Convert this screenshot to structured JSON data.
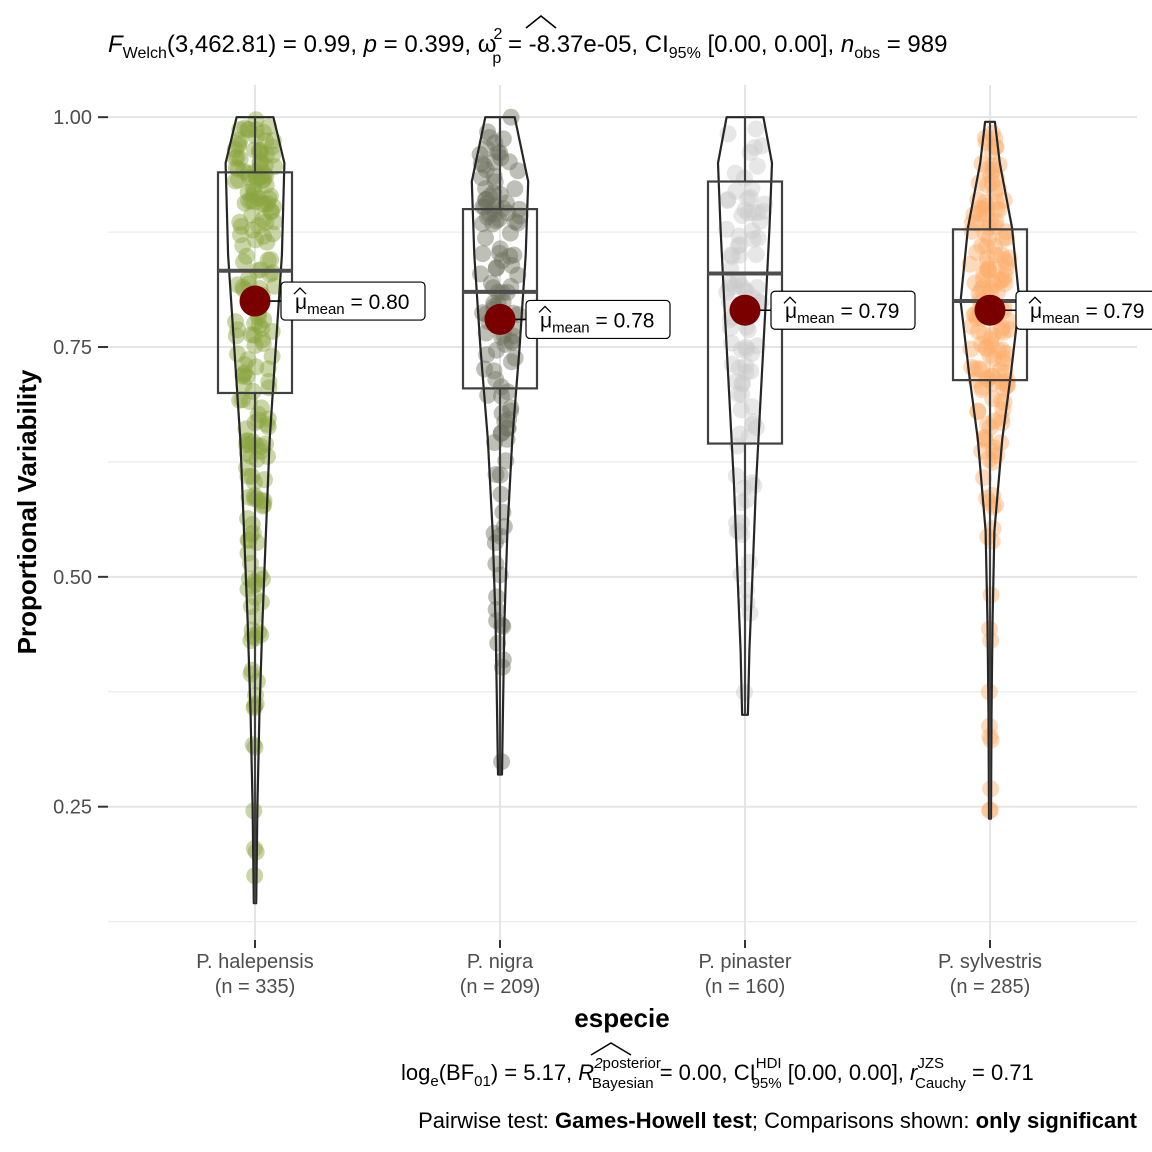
{
  "subtitle": {
    "F": "F",
    "F_sub": "Welch",
    "F_val": "(3,462.81) = 0.99, ",
    "p": "p",
    "p_val": " = 0.399, ",
    "omega": "ω",
    "omega_sup": "2",
    "omega_sub": "p",
    "omega_val": " = -8.37e-05, CI",
    "ci_sub": "95%",
    "ci_val": " [0.00, 0.00], ",
    "n": "n",
    "n_sub": "obs",
    "n_val": " = 989"
  },
  "caption": {
    "line1": {
      "log": "log",
      "log_sub": "e",
      "bf": "(BF",
      "bf_sub": "01",
      "bf_val": ") = 5.17, ",
      "r2": "R",
      "r2_sup": "2",
      "post_sup": "posterior",
      "post_sub": "Bayesian",
      "r2_val": " = 0.00, CI",
      "hdi_sup": "HDI",
      "hdi_sub": "95%",
      "ci_val": " [0.00, 0.00], ",
      "r": "r",
      "jzs_sup": "JZS",
      "cauchy_sub": "Cauchy",
      "r_val": " = 0.71"
    },
    "line2": {
      "pre": "Pairwise test: ",
      "test": "Games-Howell test",
      "mid": "; Comparisons shown: ",
      "shown": "only significant"
    }
  },
  "chart_data": {
    "type": "violin-box-scatter",
    "xlabel": "especie",
    "ylabel": "Proportional Variability",
    "ylim": [
      0.105,
      1.035
    ],
    "yticks": [
      0.25,
      0.5,
      0.75,
      1.0
    ],
    "ytick_labels": [
      "0.25",
      "0.50",
      "0.75",
      "1.00"
    ],
    "grid": true,
    "mean_label_prefix": "μ",
    "mean_label_sub": "mean",
    "groups": [
      {
        "name": "P. halepensis",
        "n_label": "(n = 335)",
        "color": "#8aa53e",
        "min": 0.145,
        "q1": 0.7,
        "median": 0.833,
        "q3": 0.94,
        "max": 1.0,
        "mean": 0.8,
        "mean_label": " = 0.80",
        "violin": [
          [
            0.145,
            0.005
          ],
          [
            0.25,
            0.01
          ],
          [
            0.35,
            0.018
          ],
          [
            0.45,
            0.03
          ],
          [
            0.55,
            0.045
          ],
          [
            0.65,
            0.06
          ],
          [
            0.75,
            0.085
          ],
          [
            0.85,
            0.11
          ],
          [
            0.95,
            0.12
          ],
          [
            1.0,
            0.075
          ]
        ]
      },
      {
        "name": "P. nigra",
        "n_label": "(n = 209)",
        "color": "#6e7160",
        "min": 0.285,
        "q1": 0.705,
        "median": 0.81,
        "q3": 0.9,
        "max": 1.0,
        "mean": 0.78,
        "mean_label": " = 0.78",
        "violin": [
          [
            0.285,
            0.008
          ],
          [
            0.35,
            0.012
          ],
          [
            0.45,
            0.018
          ],
          [
            0.55,
            0.03
          ],
          [
            0.65,
            0.05
          ],
          [
            0.75,
            0.08
          ],
          [
            0.85,
            0.105
          ],
          [
            0.93,
            0.115
          ],
          [
            1.0,
            0.06
          ]
        ]
      },
      {
        "name": "P. pinaster",
        "n_label": "(n = 160)",
        "color": "#c9c9c9",
        "min": 0.35,
        "q1": 0.645,
        "median": 0.83,
        "q3": 0.93,
        "max": 1.0,
        "mean": 0.79,
        "mean_label": " = 0.79",
        "violin": [
          [
            0.35,
            0.012
          ],
          [
            0.42,
            0.018
          ],
          [
            0.5,
            0.03
          ],
          [
            0.6,
            0.045
          ],
          [
            0.7,
            0.065
          ],
          [
            0.8,
            0.085
          ],
          [
            0.88,
            0.1
          ],
          [
            0.95,
            0.11
          ],
          [
            1.0,
            0.075
          ]
        ]
      },
      {
        "name": "P. sylvestris",
        "n_label": "(n = 285)",
        "color": "#fdae6b",
        "min": 0.237,
        "q1": 0.714,
        "median": 0.8,
        "q3": 0.878,
        "max": 0.995,
        "mean": 0.79,
        "mean_label": " = 0.79",
        "violin": [
          [
            0.237,
            0.004
          ],
          [
            0.35,
            0.006
          ],
          [
            0.45,
            0.01
          ],
          [
            0.55,
            0.018
          ],
          [
            0.65,
            0.05
          ],
          [
            0.72,
            0.085
          ],
          [
            0.8,
            0.12
          ],
          [
            0.88,
            0.09
          ],
          [
            0.95,
            0.04
          ],
          [
            0.995,
            0.02
          ]
        ]
      }
    ]
  }
}
